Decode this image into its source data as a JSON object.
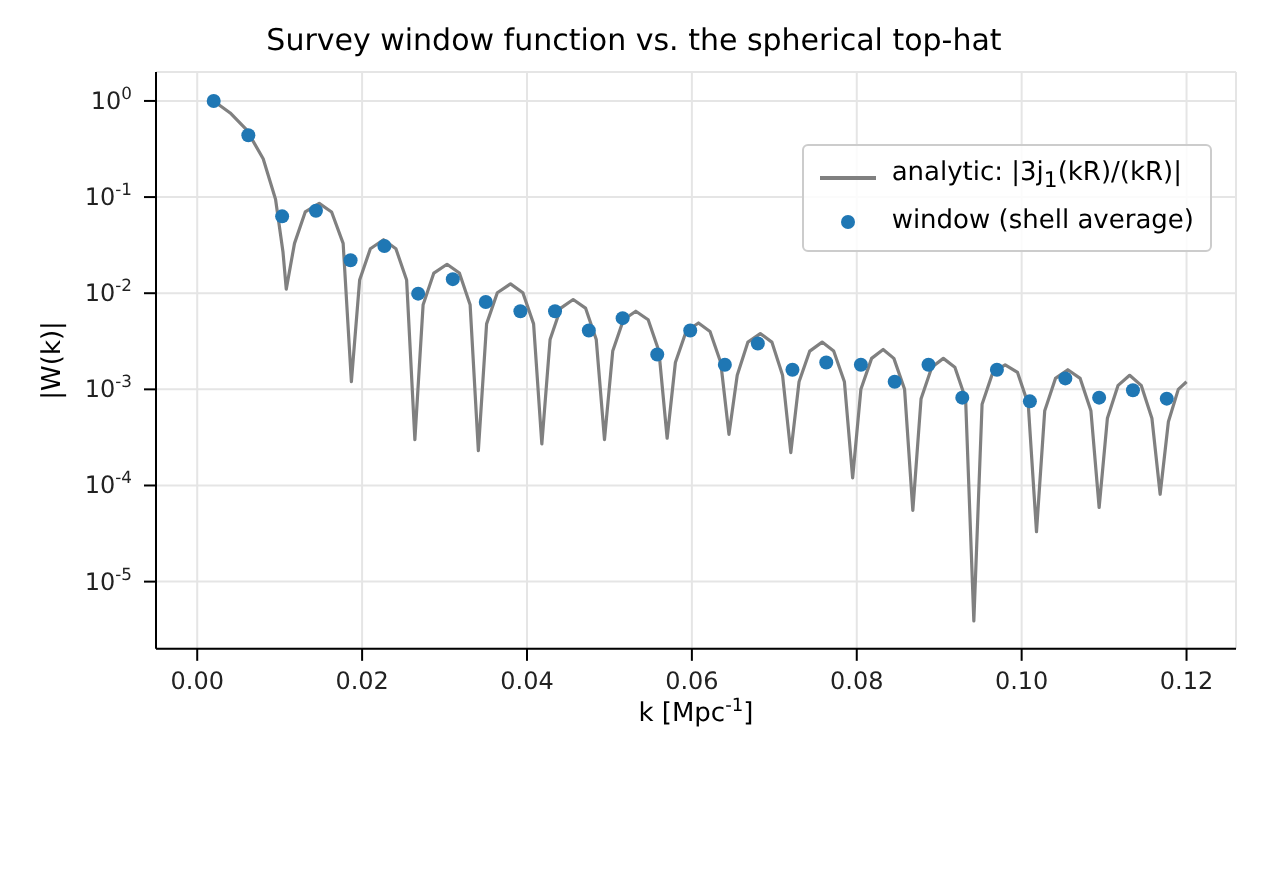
{
  "chart_data": {
    "type": "line",
    "title": "Survey window function vs. the spherical top-hat",
    "xlabel": "k [Mpc$^{-1}$]",
    "ylabel": "|W(k)|",
    "xlim": [
      -0.005,
      0.126
    ],
    "xticks": [
      {
        "value": 0,
        "label": "0.00"
      },
      {
        "value": 0.02,
        "label": "0.02"
      },
      {
        "value": 0.04,
        "label": "0.04"
      },
      {
        "value": 0.06,
        "label": "0.06"
      },
      {
        "value": 0.08,
        "label": "0.08"
      },
      {
        "value": 0.1,
        "label": "0.10"
      },
      {
        "value": 0.12,
        "label": "0.12"
      }
    ],
    "ylim": [
      2e-06,
      2
    ],
    "yticks": [
      {
        "value": 1e-05,
        "label": "10$^{-5}$"
      },
      {
        "value": 0.0001,
        "label": "10$^{-4}$"
      },
      {
        "value": 0.001,
        "label": "10$^{-3}$"
      },
      {
        "value": 0.01,
        "label": "10$^{-2}$"
      },
      {
        "value": 0.1,
        "label": "10$^{-1}$"
      },
      {
        "value": 1,
        "label": "10$^{0}$"
      }
    ],
    "log": "y",
    "grid": true,
    "legend": "top right",
    "series": [
      {
        "name": "analytic: |3j$_{1}$(kR)/(kR)|",
        "color": "#808080",
        "marker": "none",
        "line_style": "solid",
        "x": [
          0.002,
          0.004,
          0.006,
          0.008,
          0.0095,
          0.0104,
          0.0108,
          0.0118,
          0.0131,
          0.0148,
          0.0163,
          0.0177,
          0.0187,
          0.0197,
          0.021,
          0.0226,
          0.0241,
          0.0254,
          0.0264,
          0.0274,
          0.0287,
          0.0303,
          0.0318,
          0.0331,
          0.0341,
          0.0351,
          0.0364,
          0.038,
          0.0395,
          0.0408,
          0.0418,
          0.0428,
          0.0441,
          0.0456,
          0.0471,
          0.0484,
          0.0494,
          0.0504,
          0.0517,
          0.0532,
          0.0547,
          0.056,
          0.057,
          0.058,
          0.0593,
          0.0608,
          0.0622,
          0.0635,
          0.0645,
          0.0655,
          0.0668,
          0.0683,
          0.0697,
          0.071,
          0.072,
          0.073,
          0.0743,
          0.0758,
          0.0772,
          0.0785,
          0.0795,
          0.0805,
          0.0818,
          0.0832,
          0.0845,
          0.0858,
          0.0868,
          0.0878,
          0.0891,
          0.0905,
          0.0919,
          0.0932,
          0.0942,
          0.0952,
          0.0965,
          0.098,
          0.0995,
          0.1008,
          0.1018,
          0.1028,
          0.1041,
          0.1056,
          0.1071,
          0.1084,
          0.1094,
          0.1104,
          0.1117,
          0.1131,
          0.1145,
          0.1158,
          0.1168,
          0.1178,
          0.119,
          0.12
        ],
        "values": [
          1.0,
          0.75,
          0.5,
          0.25,
          0.095,
          0.027,
          0.011,
          0.033,
          0.07,
          0.086,
          0.07,
          0.033,
          0.0012,
          0.0137,
          0.029,
          0.036,
          0.029,
          0.0137,
          0.0003,
          0.0076,
          0.0162,
          0.02,
          0.0162,
          0.0076,
          0.00023,
          0.0048,
          0.0101,
          0.0125,
          0.0101,
          0.0048,
          0.00027,
          0.0033,
          0.007,
          0.0086,
          0.007,
          0.0033,
          0.0003,
          0.0025,
          0.0053,
          0.0065,
          0.0053,
          0.0025,
          0.00031,
          0.0019,
          0.004,
          0.0049,
          0.004,
          0.0019,
          0.00034,
          0.0014,
          0.0031,
          0.0038,
          0.0031,
          0.0014,
          0.00022,
          0.0012,
          0.0025,
          0.0031,
          0.0025,
          0.0012,
          0.00012,
          0.001,
          0.0021,
          0.0026,
          0.0021,
          0.001,
          5.5e-05,
          0.0008,
          0.0017,
          0.0021,
          0.0017,
          0.0008,
          3.9e-06,
          0.0007,
          0.0015,
          0.0018,
          0.0015,
          0.0007,
          3.3e-05,
          0.0006,
          0.0013,
          0.0016,
          0.0013,
          0.0006,
          5.9e-05,
          0.0005,
          0.0011,
          0.0014,
          0.0011,
          0.0005,
          8.1e-05,
          0.00046,
          0.001,
          0.0012
        ]
      },
      {
        "name": "window (shell average)",
        "type": "scatter",
        "color": "#1f77b4",
        "marker": "circle",
        "x": [
          0.002,
          0.0062,
          0.0103,
          0.0144,
          0.0186,
          0.0227,
          0.0268,
          0.031,
          0.035,
          0.0392,
          0.0434,
          0.0475,
          0.0516,
          0.0558,
          0.0598,
          0.064,
          0.068,
          0.0722,
          0.0763,
          0.0805,
          0.0846,
          0.0887,
          0.0928,
          0.097,
          0.101,
          0.1053,
          0.1094,
          0.1135,
          0.1176
        ],
        "values": [
          1.0,
          0.44,
          0.063,
          0.072,
          0.022,
          0.031,
          0.0099,
          0.014,
          0.0081,
          0.0065,
          0.0065,
          0.0041,
          0.0055,
          0.0023,
          0.0041,
          0.0018,
          0.003,
          0.0016,
          0.0019,
          0.0018,
          0.0012,
          0.0018,
          0.00082,
          0.0016,
          0.00075,
          0.0013,
          0.00082,
          0.00098,
          0.0008
        ]
      }
    ]
  }
}
